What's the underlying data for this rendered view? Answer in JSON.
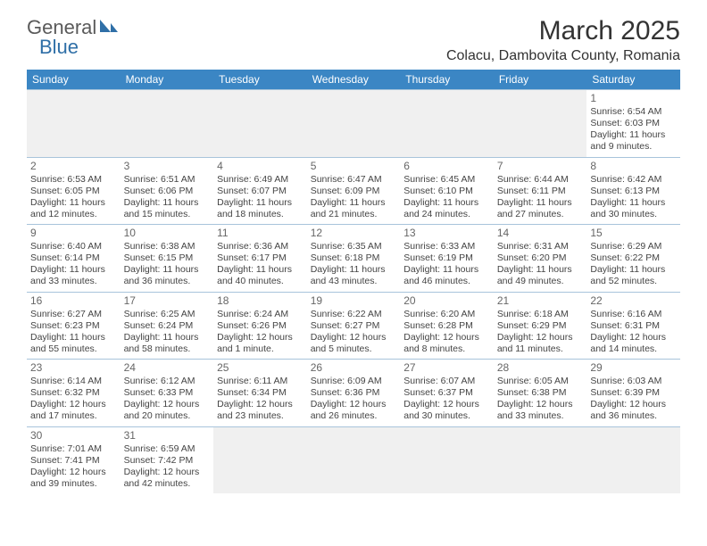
{
  "logo": {
    "general": "General",
    "blue": "Blue"
  },
  "title": "March 2025",
  "location": "Colacu, Dambovita County, Romania",
  "weekdays": [
    "Sunday",
    "Monday",
    "Tuesday",
    "Wednesday",
    "Thursday",
    "Friday",
    "Saturday"
  ],
  "colors": {
    "header_bg": "#3b86c4",
    "header_fg": "#ffffff",
    "cell_border": "#a8c4db",
    "logo_gray": "#5a5a5a",
    "logo_blue": "#2f6fa7",
    "empty_bg": "#f0f0f0"
  },
  "leading_blanks": 6,
  "days": [
    {
      "n": 1,
      "sr": "6:54 AM",
      "ss": "6:03 PM",
      "dl": "11 hours and 9 minutes."
    },
    {
      "n": 2,
      "sr": "6:53 AM",
      "ss": "6:05 PM",
      "dl": "11 hours and 12 minutes."
    },
    {
      "n": 3,
      "sr": "6:51 AM",
      "ss": "6:06 PM",
      "dl": "11 hours and 15 minutes."
    },
    {
      "n": 4,
      "sr": "6:49 AM",
      "ss": "6:07 PM",
      "dl": "11 hours and 18 minutes."
    },
    {
      "n": 5,
      "sr": "6:47 AM",
      "ss": "6:09 PM",
      "dl": "11 hours and 21 minutes."
    },
    {
      "n": 6,
      "sr": "6:45 AM",
      "ss": "6:10 PM",
      "dl": "11 hours and 24 minutes."
    },
    {
      "n": 7,
      "sr": "6:44 AM",
      "ss": "6:11 PM",
      "dl": "11 hours and 27 minutes."
    },
    {
      "n": 8,
      "sr": "6:42 AM",
      "ss": "6:13 PM",
      "dl": "11 hours and 30 minutes."
    },
    {
      "n": 9,
      "sr": "6:40 AM",
      "ss": "6:14 PM",
      "dl": "11 hours and 33 minutes."
    },
    {
      "n": 10,
      "sr": "6:38 AM",
      "ss": "6:15 PM",
      "dl": "11 hours and 36 minutes."
    },
    {
      "n": 11,
      "sr": "6:36 AM",
      "ss": "6:17 PM",
      "dl": "11 hours and 40 minutes."
    },
    {
      "n": 12,
      "sr": "6:35 AM",
      "ss": "6:18 PM",
      "dl": "11 hours and 43 minutes."
    },
    {
      "n": 13,
      "sr": "6:33 AM",
      "ss": "6:19 PM",
      "dl": "11 hours and 46 minutes."
    },
    {
      "n": 14,
      "sr": "6:31 AM",
      "ss": "6:20 PM",
      "dl": "11 hours and 49 minutes."
    },
    {
      "n": 15,
      "sr": "6:29 AM",
      "ss": "6:22 PM",
      "dl": "11 hours and 52 minutes."
    },
    {
      "n": 16,
      "sr": "6:27 AM",
      "ss": "6:23 PM",
      "dl": "11 hours and 55 minutes."
    },
    {
      "n": 17,
      "sr": "6:25 AM",
      "ss": "6:24 PM",
      "dl": "11 hours and 58 minutes."
    },
    {
      "n": 18,
      "sr": "6:24 AM",
      "ss": "6:26 PM",
      "dl": "12 hours and 1 minute."
    },
    {
      "n": 19,
      "sr": "6:22 AM",
      "ss": "6:27 PM",
      "dl": "12 hours and 5 minutes."
    },
    {
      "n": 20,
      "sr": "6:20 AM",
      "ss": "6:28 PM",
      "dl": "12 hours and 8 minutes."
    },
    {
      "n": 21,
      "sr": "6:18 AM",
      "ss": "6:29 PM",
      "dl": "12 hours and 11 minutes."
    },
    {
      "n": 22,
      "sr": "6:16 AM",
      "ss": "6:31 PM",
      "dl": "12 hours and 14 minutes."
    },
    {
      "n": 23,
      "sr": "6:14 AM",
      "ss": "6:32 PM",
      "dl": "12 hours and 17 minutes."
    },
    {
      "n": 24,
      "sr": "6:12 AM",
      "ss": "6:33 PM",
      "dl": "12 hours and 20 minutes."
    },
    {
      "n": 25,
      "sr": "6:11 AM",
      "ss": "6:34 PM",
      "dl": "12 hours and 23 minutes."
    },
    {
      "n": 26,
      "sr": "6:09 AM",
      "ss": "6:36 PM",
      "dl": "12 hours and 26 minutes."
    },
    {
      "n": 27,
      "sr": "6:07 AM",
      "ss": "6:37 PM",
      "dl": "12 hours and 30 minutes."
    },
    {
      "n": 28,
      "sr": "6:05 AM",
      "ss": "6:38 PM",
      "dl": "12 hours and 33 minutes."
    },
    {
      "n": 29,
      "sr": "6:03 AM",
      "ss": "6:39 PM",
      "dl": "12 hours and 36 minutes."
    },
    {
      "n": 30,
      "sr": "7:01 AM",
      "ss": "7:41 PM",
      "dl": "12 hours and 39 minutes."
    },
    {
      "n": 31,
      "sr": "6:59 AM",
      "ss": "7:42 PM",
      "dl": "12 hours and 42 minutes."
    }
  ],
  "labels": {
    "sunrise": "Sunrise: ",
    "sunset": "Sunset: ",
    "daylight": "Daylight: "
  }
}
